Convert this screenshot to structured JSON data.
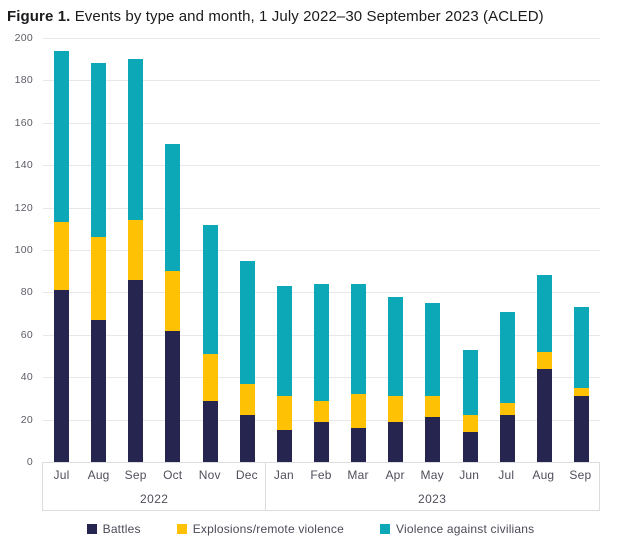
{
  "title": {
    "prefix": "Figure 1.",
    "rest": " Events by type and month, 1 July 2022–30 September 2023 (ACLED)"
  },
  "colors": {
    "battles": "#262550",
    "explosions": "#ffc104",
    "violence_against_civilians": "#0ca8b8",
    "gridline": "#e8e8ea",
    "axis_text": "#5c5c66",
    "label_text": "#4f4f5c",
    "box_border": "#dcdcdf"
  },
  "chart_data": {
    "type": "bar",
    "stacked": true,
    "title": "Figure 1. Events by type and month, 1 July 2022–30 September 2023 (ACLED)",
    "categories": [
      "Jul",
      "Aug",
      "Sep",
      "Oct",
      "Nov",
      "Dec",
      "Jan",
      "Feb",
      "Mar",
      "Apr",
      "May",
      "Jun",
      "Jul",
      "Aug",
      "Sep"
    ],
    "year_groups": [
      {
        "label": "2022",
        "span": 6
      },
      {
        "label": "2023",
        "span": 9
      }
    ],
    "series": [
      {
        "name": "Battles",
        "color": "#262550",
        "values": [
          81,
          67,
          86,
          62,
          29,
          22,
          15,
          19,
          16,
          19,
          21,
          14,
          22,
          44,
          31
        ]
      },
      {
        "name": "Explosions/remote violence",
        "color": "#ffc104",
        "values": [
          32,
          39,
          28,
          28,
          22,
          15,
          16,
          10,
          16,
          12,
          10,
          8,
          6,
          8,
          4
        ]
      },
      {
        "name": "Violence against civilians",
        "color": "#0ca8b8",
        "values": [
          81,
          82,
          76,
          60,
          61,
          58,
          52,
          55,
          52,
          47,
          44,
          31,
          43,
          36,
          38
        ]
      }
    ],
    "totals": [
      194,
      188,
      190,
      150,
      112,
      95,
      83,
      84,
      84,
      78,
      75,
      53,
      71,
      88,
      73
    ],
    "ylim": [
      0,
      200
    ],
    "ytick_step": 20,
    "yticks": [
      "200",
      "180",
      "160",
      "140",
      "120",
      "100",
      "80",
      "60",
      "40",
      "20",
      "0"
    ],
    "grid": true,
    "legend_position": "bottom"
  }
}
